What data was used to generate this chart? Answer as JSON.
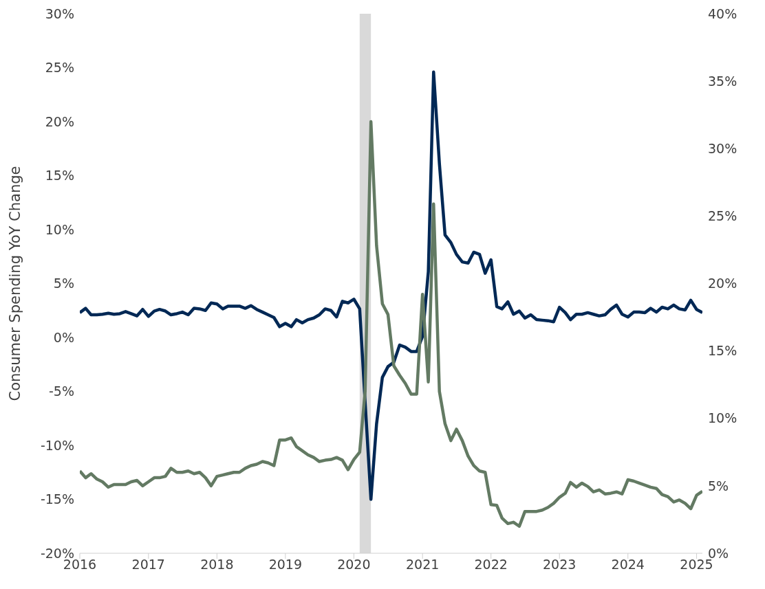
{
  "chart_data": {
    "type": "line",
    "ylabel": "Consumer Spending YoY Change",
    "x": [
      "2016-01",
      "2016-02",
      "2016-03",
      "2016-04",
      "2016-05",
      "2016-06",
      "2016-07",
      "2016-08",
      "2016-09",
      "2016-10",
      "2016-11",
      "2016-12",
      "2017-01",
      "2017-02",
      "2017-03",
      "2017-04",
      "2017-05",
      "2017-06",
      "2017-07",
      "2017-08",
      "2017-09",
      "2017-10",
      "2017-11",
      "2017-12",
      "2018-01",
      "2018-02",
      "2018-03",
      "2018-04",
      "2018-05",
      "2018-06",
      "2018-07",
      "2018-08",
      "2018-09",
      "2018-10",
      "2018-11",
      "2018-12",
      "2019-01",
      "2019-02",
      "2019-03",
      "2019-04",
      "2019-05",
      "2019-06",
      "2019-07",
      "2019-08",
      "2019-09",
      "2019-10",
      "2019-11",
      "2019-12",
      "2020-01",
      "2020-02",
      "2020-03",
      "2020-04",
      "2020-05",
      "2020-06",
      "2020-07",
      "2020-08",
      "2020-09",
      "2020-10",
      "2020-11",
      "2020-12",
      "2021-01",
      "2021-02",
      "2021-03",
      "2021-04",
      "2021-05",
      "2021-06",
      "2021-07",
      "2021-08",
      "2021-09",
      "2021-10",
      "2021-11",
      "2021-12",
      "2022-01",
      "2022-02",
      "2022-03",
      "2022-04",
      "2022-05",
      "2022-06",
      "2022-07",
      "2022-08",
      "2022-09",
      "2022-10",
      "2022-11",
      "2022-12",
      "2023-01",
      "2023-02",
      "2023-03",
      "2023-04",
      "2023-05",
      "2023-06",
      "2023-07",
      "2023-08",
      "2023-09",
      "2023-10",
      "2023-11",
      "2023-12",
      "2024-01",
      "2024-02",
      "2024-03",
      "2024-04",
      "2024-05",
      "2024-06",
      "2024-07",
      "2024-08",
      "2024-09",
      "2024-10",
      "2024-11",
      "2024-12",
      "2025-01",
      "2025-02"
    ],
    "series": [
      {
        "color": "#002855",
        "values": [
          2.3,
          2.7,
          2.1,
          2.1,
          2.15,
          2.25,
          2.15,
          2.2,
          2.4,
          2.2,
          2.0,
          2.6,
          1.95,
          2.45,
          2.6,
          2.45,
          2.1,
          2.2,
          2.35,
          2.1,
          2.7,
          2.65,
          2.5,
          3.2,
          3.1,
          2.65,
          2.9,
          2.9,
          2.9,
          2.7,
          2.95,
          2.6,
          2.35,
          2.1,
          1.85,
          1.0,
          1.3,
          1.0,
          1.65,
          1.35,
          1.65,
          1.8,
          2.1,
          2.65,
          2.5,
          1.9,
          3.35,
          3.2,
          3.55,
          2.65,
          -6,
          -15,
          -8,
          -3.7,
          -2.7,
          -2.3,
          -0.7,
          -0.9,
          -1.3,
          -1.3,
          0.1,
          6.1,
          24.6,
          16.1,
          9.5,
          8.8,
          7.7,
          7.0,
          6.9,
          7.9,
          7.7,
          5.95,
          7.2,
          2.85,
          2.65,
          3.3,
          2.15,
          2.45,
          1.8,
          2.1,
          1.65,
          1.6,
          1.55,
          1.45,
          2.8,
          2.3,
          1.65,
          2.15,
          2.15,
          2.3,
          2.15,
          2.0,
          2.1,
          2.6,
          3.0,
          2.15,
          1.9,
          2.35,
          2.35,
          2.3,
          2.7,
          2.35,
          2.8,
          2.65,
          3.0,
          2.65,
          2.55,
          3.45,
          2.6,
          2.3
        ]
      },
      {
        "color": "#637a63",
        "axis": "y2",
        "values": [
          6.1,
          5.6,
          5.9,
          5.5,
          5.3,
          4.9,
          5.1,
          5.1,
          5.1,
          5.3,
          5.4,
          5.0,
          5.3,
          5.6,
          5.6,
          5.7,
          6.3,
          6.0,
          6.0,
          6.1,
          5.9,
          6.0,
          5.6,
          5.0,
          5.7,
          5.8,
          5.9,
          6.0,
          6.0,
          6.3,
          6.5,
          6.6,
          6.8,
          6.7,
          6.5,
          8.4,
          8.4,
          8.55,
          7.9,
          7.6,
          7.3,
          7.1,
          6.8,
          6.9,
          6.95,
          7.1,
          6.9,
          6.2,
          6.95,
          7.5,
          12,
          32.0,
          22.8,
          18.5,
          17.7,
          13.9,
          13.2,
          12.6,
          11.8,
          11.8,
          19.2,
          12.7,
          25.9,
          12.0,
          9.6,
          8.35,
          9.2,
          8.35,
          7.2,
          6.5,
          6.1,
          6.0,
          3.6,
          3.55,
          2.6,
          2.2,
          2.3,
          2.0,
          3.1,
          3.1,
          3.1,
          3.2,
          3.4,
          3.7,
          4.15,
          4.45,
          5.25,
          4.9,
          5.2,
          4.95,
          4.55,
          4.7,
          4.4,
          4.45,
          4.55,
          4.4,
          5.45,
          5.35,
          5.2,
          5.05,
          4.9,
          4.8,
          4.35,
          4.2,
          3.8,
          3.95,
          3.7,
          3.3,
          4.3,
          4.6
        ]
      }
    ],
    "xlim": [
      "2016-01",
      "2025-02"
    ],
    "xticks": [
      "2016",
      "2017",
      "2018",
      "2019",
      "2020",
      "2021",
      "2022",
      "2023",
      "2024",
      "2025"
    ],
    "ylim": [
      -20,
      30
    ],
    "yticks": [
      {
        "value": -20,
        "label": "-20%"
      },
      {
        "value": -15,
        "label": "-15%"
      },
      {
        "value": -10,
        "label": "-10%"
      },
      {
        "value": -5,
        "label": "-5%"
      },
      {
        "value": 0,
        "label": "0%"
      },
      {
        "value": 5,
        "label": "5%"
      },
      {
        "value": 10,
        "label": "10%"
      },
      {
        "value": 15,
        "label": "15%"
      },
      {
        "value": 20,
        "label": "20%"
      },
      {
        "value": 25,
        "label": "25%"
      },
      {
        "value": 30,
        "label": "30%"
      }
    ],
    "y2lim": [
      0,
      40
    ],
    "y2ticks": [
      {
        "value": 0,
        "label": "0%"
      },
      {
        "value": 5,
        "label": "5%"
      },
      {
        "value": 10,
        "label": "10%"
      },
      {
        "value": 15,
        "label": "15%"
      },
      {
        "value": 20,
        "label": "20%"
      },
      {
        "value": 25,
        "label": "25%"
      },
      {
        "value": 30,
        "label": "30%"
      },
      {
        "value": 35,
        "label": "35%"
      },
      {
        "value": 40,
        "label": "40%"
      }
    ],
    "bands": [
      {
        "axis": "x",
        "from": "2020-02",
        "to": "2020-04",
        "color": "#d9d9d9"
      }
    ],
    "grid": false,
    "legend": false,
    "marker": "none",
    "line_style": "solid"
  }
}
